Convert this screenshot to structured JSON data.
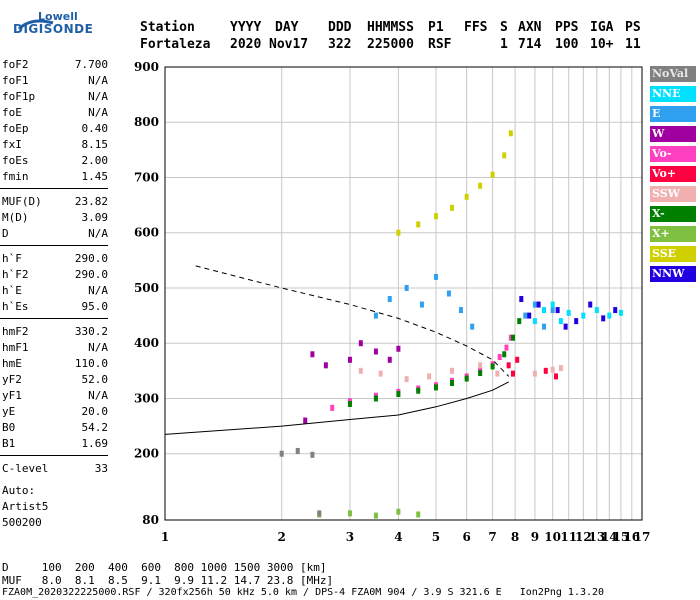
{
  "logo": {
    "line1": "Lowell",
    "line2": "DIGISONDE"
  },
  "header": {
    "labels": [
      "Station",
      "YYYY",
      "DAY",
      "DDD",
      "HHMMSS",
      "P1",
      "FFS",
      "S",
      "AXN",
      "PPS",
      "IGA",
      "PS"
    ],
    "values": [
      "Fortaleza",
      "2020",
      "Nov17",
      "322",
      "225000",
      "RSF",
      "1",
      "714",
      "100",
      "10+",
      "11"
    ]
  },
  "parameters": [
    {
      "name": "foF2",
      "value": "7.700"
    },
    {
      "name": "foF1",
      "value": "N/A"
    },
    {
      "name": "foF1p",
      "value": "N/A"
    },
    {
      "name": "foE",
      "value": "N/A"
    },
    {
      "name": "foEp",
      "value": "0.40"
    },
    {
      "name": "fxI",
      "value": "8.15"
    },
    {
      "name": "foEs",
      "value": "2.00"
    },
    {
      "name": "fmin",
      "value": "1.45"
    },
    {
      "name": "MUF(D)",
      "value": "23.82"
    },
    {
      "name": "M(D)",
      "value": "3.09"
    },
    {
      "name": "D",
      "value": "N/A"
    },
    {
      "name": "h`F",
      "value": "290.0"
    },
    {
      "name": "h`F2",
      "value": "290.0"
    },
    {
      "name": "h`E",
      "value": "N/A"
    },
    {
      "name": "h`Es",
      "value": "95.0"
    },
    {
      "name": "hmF2",
      "value": "330.2"
    },
    {
      "name": "hmF1",
      "value": "N/A"
    },
    {
      "name": "hmE",
      "value": "110.0"
    },
    {
      "name": "yF2",
      "value": "52.0"
    },
    {
      "name": "yF1",
      "value": "N/A"
    },
    {
      "name": "yE",
      "value": "20.0"
    },
    {
      "name": "B0",
      "value": "54.2"
    },
    {
      "name": "B1",
      "value": "1.69"
    },
    {
      "name": "C-level",
      "value": "33"
    }
  ],
  "auto": {
    "line1": "Auto:",
    "line2": "Artist5",
    "line3": "500200"
  },
  "legend": [
    {
      "label": "NoVal",
      "color": "#808080"
    },
    {
      "label": "NNE",
      "color": "#00e0ff"
    },
    {
      "label": "E",
      "color": "#30a0f0"
    },
    {
      "label": "W",
      "color": "#a000a0"
    },
    {
      "label": "Vo-",
      "color": "#ff40c0"
    },
    {
      "label": "Vo+",
      "color": "#ff0040"
    },
    {
      "label": "SSW",
      "color": "#f0b0b0"
    },
    {
      "label": "X-",
      "color": "#008000"
    },
    {
      "label": "X+",
      "color": "#80c040"
    },
    {
      "label": "SSE",
      "color": "#d0d000"
    },
    {
      "label": "NNW",
      "color": "#2000e0"
    }
  ],
  "footer": {
    "line1": "D     100  200  400  600  800 1000 1500 3000 [km]",
    "line2": "MUF   8.0  8.1  8.5  9.1  9.9 11.2 14.7 23.8 [MHz]",
    "line3": "FZA0M_2020322225000.RSF / 320fx256h 50 kHz 5.0 km / DPS-4 FZA0M 904 / 3.9 S 321.6 E   Ion2Png 1.3.20"
  },
  "chart_data": {
    "type": "scatter",
    "x_ticks": [
      1,
      2,
      3,
      4,
      5,
      6,
      7,
      8,
      9,
      10,
      11,
      12,
      13,
      14,
      15,
      16,
      17
    ],
    "y_ticks": [
      80,
      200,
      300,
      400,
      500,
      600,
      700,
      800,
      900
    ],
    "xlim": [
      1,
      17
    ],
    "ylim": [
      80,
      900
    ],
    "x_scale": "log",
    "grid": true,
    "xlabel": "",
    "ylabel": "",
    "series": [
      {
        "legend": "Vo-",
        "points": [
          [
            2.7,
            283
          ],
          [
            3.0,
            295
          ],
          [
            3.5,
            305
          ],
          [
            4.0,
            312
          ],
          [
            4.5,
            318
          ],
          [
            5.0,
            324
          ],
          [
            5.5,
            332
          ],
          [
            6.0,
            340
          ],
          [
            6.5,
            350
          ],
          [
            7.0,
            362
          ],
          [
            7.3,
            375
          ],
          [
            7.6,
            392
          ],
          [
            7.8,
            410
          ]
        ]
      },
      {
        "legend": "X-",
        "points": [
          [
            3.0,
            290
          ],
          [
            3.5,
            300
          ],
          [
            4.0,
            308
          ],
          [
            4.5,
            314
          ],
          [
            5.0,
            320
          ],
          [
            5.5,
            328
          ],
          [
            6.0,
            336
          ],
          [
            6.5,
            346
          ],
          [
            7.0,
            358
          ],
          [
            7.5,
            380
          ],
          [
            7.9,
            410
          ],
          [
            8.2,
            440
          ]
        ]
      },
      {
        "legend": "W",
        "points": [
          [
            2.3,
            260
          ],
          [
            2.4,
            380
          ],
          [
            2.6,
            360
          ],
          [
            3.0,
            370
          ],
          [
            3.2,
            400
          ],
          [
            3.5,
            385
          ],
          [
            3.8,
            370
          ],
          [
            4.0,
            390
          ]
        ]
      },
      {
        "legend": "SSW",
        "points": [
          [
            3.2,
            350
          ],
          [
            3.6,
            345
          ],
          [
            4.2,
            335
          ],
          [
            4.8,
            340
          ],
          [
            5.5,
            350
          ],
          [
            6.5,
            360
          ],
          [
            7.2,
            345
          ],
          [
            9.0,
            345
          ],
          [
            10.0,
            352
          ],
          [
            10.5,
            355
          ]
        ]
      },
      {
        "legend": "E",
        "points": [
          [
            3.5,
            450
          ],
          [
            3.8,
            480
          ],
          [
            4.2,
            500
          ],
          [
            4.6,
            470
          ],
          [
            5.0,
            520
          ],
          [
            5.4,
            490
          ],
          [
            5.8,
            460
          ],
          [
            6.2,
            430
          ],
          [
            8.5,
            450
          ],
          [
            9.0,
            470
          ],
          [
            9.5,
            430
          ],
          [
            10.0,
            460
          ]
        ]
      },
      {
        "legend": "NNE",
        "points": [
          [
            9.0,
            440
          ],
          [
            9.5,
            460
          ],
          [
            10.0,
            470
          ],
          [
            10.5,
            440
          ],
          [
            11.0,
            455
          ],
          [
            12.0,
            450
          ],
          [
            13.0,
            460
          ],
          [
            14.0,
            450
          ],
          [
            15.0,
            455
          ]
        ]
      },
      {
        "legend": "NNW",
        "points": [
          [
            8.3,
            480
          ],
          [
            8.7,
            450
          ],
          [
            9.2,
            470
          ],
          [
            10.3,
            460
          ],
          [
            10.8,
            430
          ],
          [
            11.5,
            440
          ],
          [
            12.5,
            470
          ],
          [
            13.5,
            445
          ],
          [
            14.5,
            460
          ]
        ]
      },
      {
        "legend": "Vo+",
        "points": [
          [
            7.7,
            360
          ],
          [
            7.9,
            345
          ],
          [
            8.1,
            370
          ],
          [
            9.6,
            350
          ],
          [
            10.2,
            340
          ]
        ]
      },
      {
        "legend": "SSE",
        "points": [
          [
            4.0,
            600
          ],
          [
            4.5,
            615
          ],
          [
            5.0,
            630
          ],
          [
            5.5,
            645
          ],
          [
            6.0,
            665
          ],
          [
            6.5,
            685
          ],
          [
            7.0,
            705
          ],
          [
            7.5,
            740
          ],
          [
            7.8,
            780
          ]
        ]
      },
      {
        "legend": "X+",
        "points": [
          [
            2.5,
            90
          ],
          [
            3.0,
            92
          ],
          [
            3.5,
            88
          ],
          [
            4.0,
            95
          ],
          [
            4.5,
            90
          ]
        ]
      },
      {
        "legend": "NoVal",
        "points": [
          [
            2.0,
            200
          ],
          [
            2.2,
            205
          ],
          [
            2.4,
            198
          ],
          [
            2.5,
            92
          ]
        ]
      }
    ],
    "profile_upper": [
      [
        1.2,
        540
      ],
      [
        2,
        500
      ],
      [
        3,
        470
      ],
      [
        4,
        445
      ],
      [
        5,
        420
      ],
      [
        6,
        395
      ],
      [
        7,
        370
      ],
      [
        7.7,
        340
      ]
    ],
    "profile_lower": [
      [
        1.0,
        235
      ],
      [
        2,
        250
      ],
      [
        3,
        262
      ],
      [
        4,
        270
      ],
      [
        5,
        285
      ],
      [
        6,
        300
      ],
      [
        7,
        315
      ],
      [
        7.7,
        330
      ]
    ]
  }
}
